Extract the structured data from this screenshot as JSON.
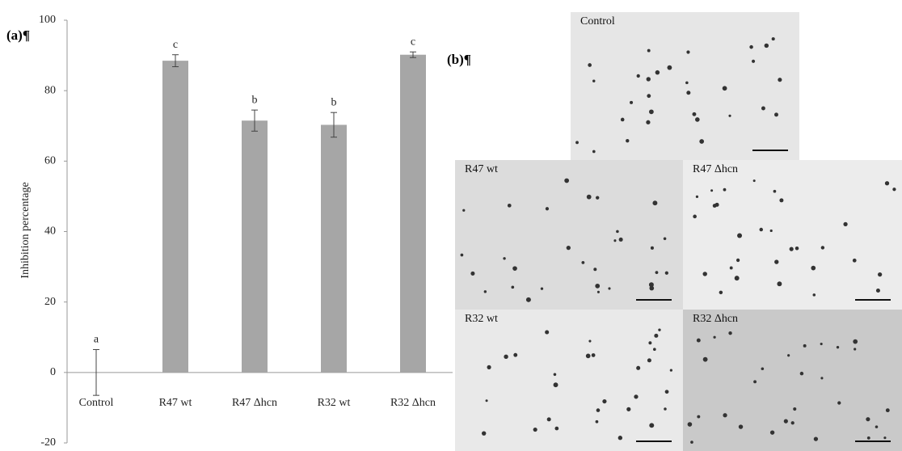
{
  "chart_data": {
    "type": "bar",
    "y_label": "Inhibition percentage",
    "categories": [
      "Control",
      "R47 wt",
      "R47 Δhcn",
      "R32 wt",
      "R32 Δhcn"
    ],
    "values": [
      0,
      88.5,
      71.5,
      70.3,
      90.2
    ],
    "errors": [
      6.5,
      1.7,
      3,
      3.5,
      0.8
    ],
    "letters": [
      "a",
      "c",
      "b",
      "b",
      "c"
    ],
    "color": "#a6a6a6",
    "ylim": [
      -20,
      100
    ],
    "yticks": [
      -20,
      0,
      20,
      40,
      60,
      80,
      100
    ],
    "grid": false
  },
  "panel_labels": [
    "(a)¶",
    "(b)¶"
  ],
  "images": [
    "Control",
    "R47 wt",
    "R47 Δhcn",
    "R32 wt",
    "R32 Δhcn"
  ]
}
